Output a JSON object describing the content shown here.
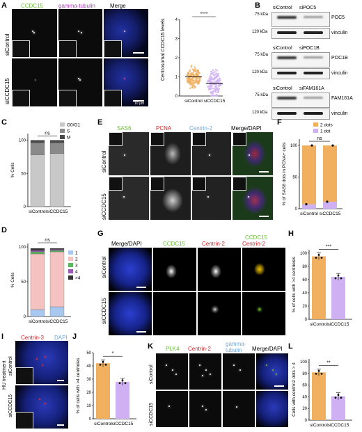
{
  "colors": {
    "green": "#6dbf3c",
    "magenta": "#b03cc4",
    "red": "#d2242a",
    "blue": "#6fa8dc",
    "orange": "#f0b060",
    "lilac": "#cfb0f2",
    "pink": "#f4c2c0",
    "dapi": "#2b3bb0"
  },
  "panelA": {
    "label": "A",
    "ch1": "CCDC15",
    "ch2": "gamma-tubulin",
    "ch3": "Merge",
    "row1": "siControl",
    "row2": "siCCDC15",
    "scale": "10 µm"
  },
  "panelA_chart": {
    "ylabel": "Centrosomal CCDC15 levels",
    "sig": "****",
    "chart_data": {
      "type": "scatter",
      "categories": [
        "siControl",
        "siCCDC15"
      ],
      "yticks": [
        "0",
        "1",
        "2",
        "3",
        "4"
      ],
      "ylim": [
        0,
        4
      ],
      "means": [
        1.0,
        0.65
      ],
      "sd": [
        0.35,
        0.5
      ]
    }
  },
  "panelB": {
    "label": "B",
    "blots": [
      {
        "lanes": [
          "siControl",
          "siPOC5"
        ],
        "upper_kda": "75 kDa",
        "upper": "POC5",
        "lower_kda": "120 kDa",
        "lower": "vinculin"
      },
      {
        "lanes": [
          "siControl",
          "siPOC1B"
        ],
        "upper_kda": "75 kDa",
        "upper": "POC1B",
        "lower_kda": "120 kDa",
        "lower": "vinculin"
      },
      {
        "lanes": [
          "siControl",
          "siFAM161A"
        ],
        "upper_kda": "75 kDa",
        "upper": "FAM161A",
        "lower_kda": "120 kDa",
        "lower": "vinculin"
      }
    ]
  },
  "panelC": {
    "label": "C",
    "ylabel": "% Cells",
    "sig": "ns",
    "legend": [
      "G0/G1",
      "S",
      "M"
    ],
    "chart_data": {
      "type": "bar",
      "categories": [
        "siControl",
        "siCCDC15"
      ],
      "series": [
        {
          "name": "G0/G1",
          "values": [
            78,
            80
          ]
        },
        {
          "name": "S",
          "values": [
            18,
            16
          ]
        },
        {
          "name": "M",
          "values": [
            4,
            4
          ]
        }
      ],
      "yticks": [
        "0",
        "50",
        "100"
      ],
      "ylim": [
        0,
        110
      ]
    }
  },
  "panelD": {
    "label": "D",
    "ylabel": "% Cells",
    "sig": "ns",
    "legend": [
      "1",
      "2",
      "3",
      "4",
      ">4"
    ],
    "chart_data": {
      "type": "bar",
      "categories": [
        "siControl",
        "siCCDC15"
      ],
      "series": [
        {
          "name": "1",
          "values": [
            10,
            14
          ]
        },
        {
          "name": "2",
          "values": [
            80,
            79
          ]
        },
        {
          "name": "3",
          "values": [
            3,
            2
          ]
        },
        {
          "name": "4",
          "values": [
            2,
            1.5
          ]
        },
        {
          "name": ">4",
          "values": [
            3,
            1.5
          ]
        }
      ],
      "yticks": [
        "0",
        "50",
        "100"
      ],
      "ylim": [
        0,
        105
      ]
    }
  },
  "panelE": {
    "label": "E",
    "ch1": "SAS6",
    "ch2": "PCNA",
    "ch3": "Centrin-2",
    "ch4": "Merge/DAPI",
    "row1": "siControl",
    "row2": "siCCDC15"
  },
  "panelF": {
    "label": "F",
    "ylabel": "% of SAS6 dots in PCNA+ cells",
    "sig": "ns",
    "legend": [
      "2 dots",
      "1 dot"
    ],
    "chart_data": {
      "type": "bar",
      "categories": [
        "siControl",
        "siCCDC15"
      ],
      "series": [
        {
          "name": "1 dot",
          "values": [
            7,
            11
          ]
        },
        {
          "name": "2 dots",
          "values": [
            93,
            89
          ]
        }
      ],
      "yticks": [
        "0",
        "50",
        "100"
      ],
      "ylim": [
        0,
        110
      ]
    }
  },
  "panelG": {
    "label": "G",
    "ch1": "Merge/DAPI",
    "ch2": "CCDC15",
    "ch3": "Centrin-2",
    "ch4a": "CCDC15",
    "ch4b": "Centrin-2",
    "row1": "siControl",
    "row2": "siCCDC15"
  },
  "panelH": {
    "label": "H",
    "ylabel": "% of cells with >4 centrioles",
    "sig": "***",
    "chart_data": {
      "type": "bar",
      "categories": [
        "siControl",
        "siCCDC15"
      ],
      "values": [
        95,
        64
      ],
      "yticks": [
        "0",
        "20",
        "40",
        "60",
        "80",
        "100"
      ],
      "ylim": [
        0,
        105
      ]
    }
  },
  "panelI": {
    "label": "I",
    "side": "HU treatment",
    "ch1": "Centrin-3",
    "ch2": "DAPI",
    "row1": "siControl",
    "row2": "siCCDC15"
  },
  "panelJ": {
    "label": "J",
    "ylabel": "% of cells with >4 centrioles",
    "sig": "*",
    "chart_data": {
      "type": "bar",
      "categories": [
        "siControl",
        "siCCDC15"
      ],
      "values": [
        42,
        28
      ],
      "yticks": [
        "0",
        "10",
        "20",
        "30",
        "40",
        "50"
      ],
      "ylim": [
        0,
        50
      ]
    }
  },
  "panelK": {
    "label": "K",
    "ch1": "PLK4",
    "ch2": "Centrin-2",
    "ch3a": "gamma-",
    "ch3b": "tubulin",
    "ch4": "Merge/DAPI",
    "row1": "siControl",
    "row2": "siCCDC15"
  },
  "panelL": {
    "label": "L",
    "ylabel": "Cells with centrin2 dots > 4",
    "sig": "**",
    "chart_data": {
      "type": "bar",
      "categories": [
        "siControl",
        "siCCDC15"
      ],
      "values": [
        82,
        41
      ],
      "yticks": [
        "0",
        "20",
        "40",
        "60",
        "80",
        "100"
      ],
      "ylim": [
        0,
        105
      ]
    }
  }
}
